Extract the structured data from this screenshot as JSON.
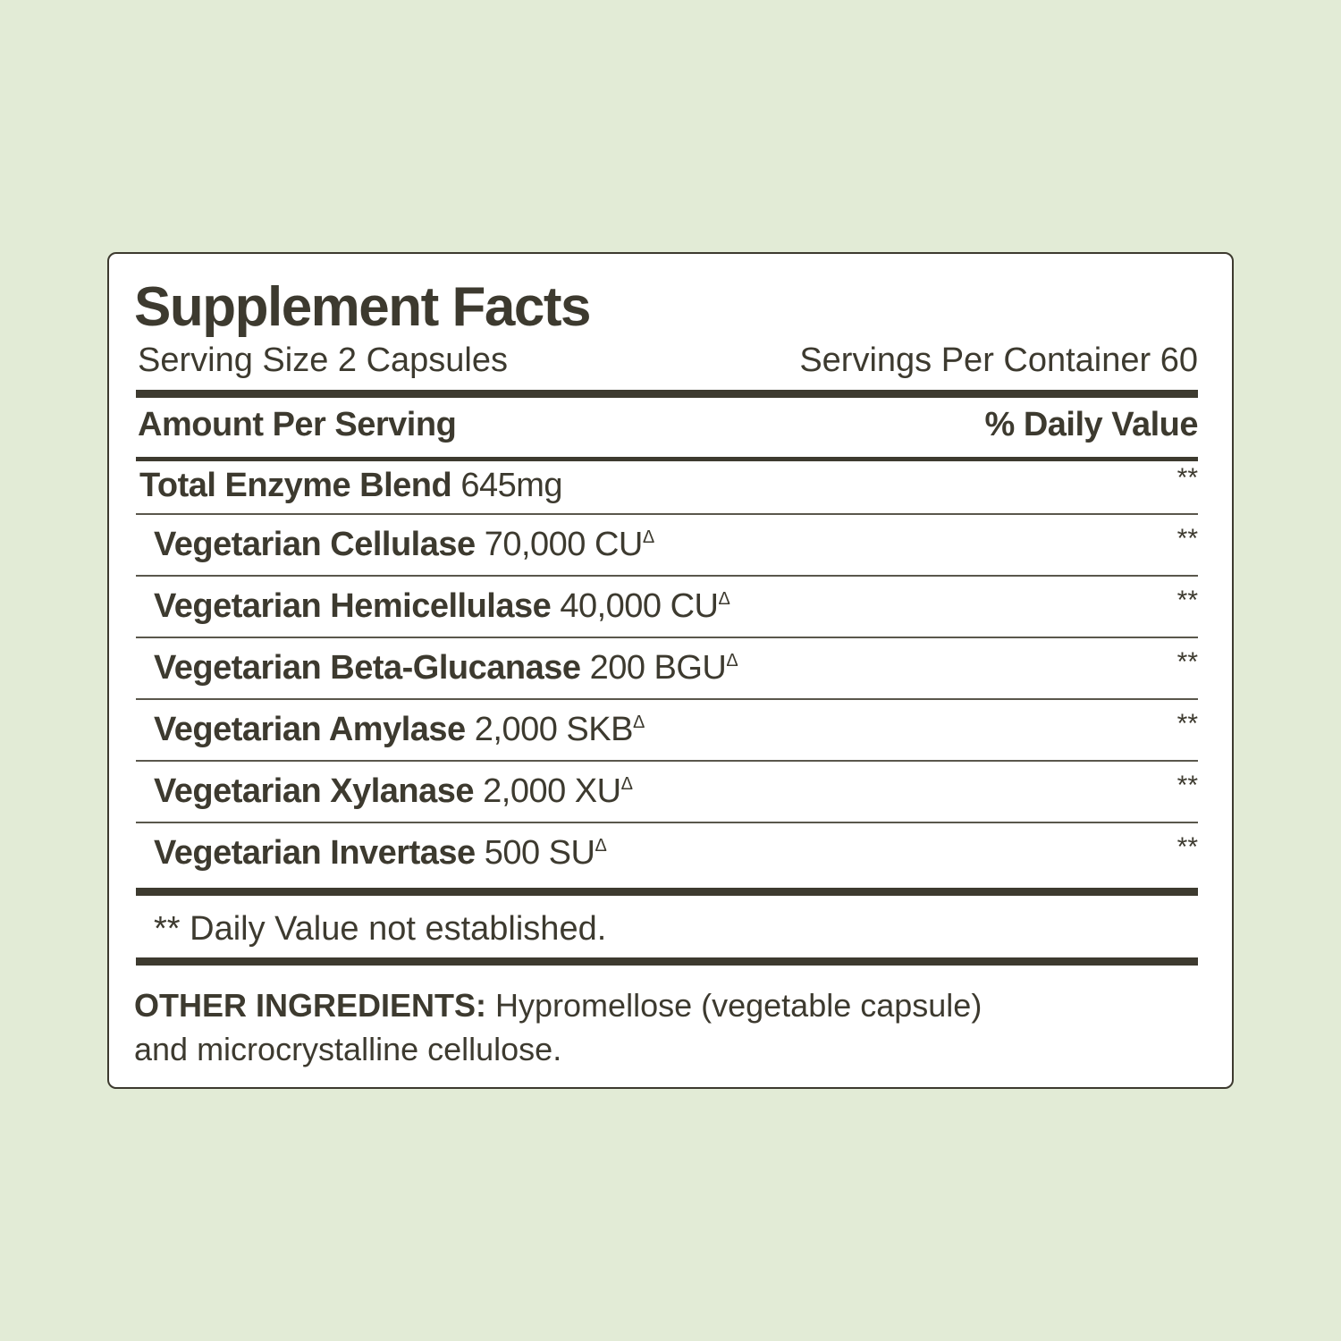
{
  "colors": {
    "background": "#e2ebd6",
    "panel": "#ffffff",
    "text": "#3d3a2f"
  },
  "label": {
    "title": "Supplement Facts",
    "serving_size": "Serving Size 2 Capsules",
    "servings_per_container": "Servings Per Container 60",
    "amount_header": "Amount Per Serving",
    "dv_header": "% Daily Value",
    "total": {
      "name": "Total Enzyme Blend",
      "amount": "645mg",
      "dv": "**"
    },
    "items": [
      {
        "name": "Vegetarian Cellulase",
        "amount": "70,000 CU",
        "mark": "Δ",
        "dv": "**"
      },
      {
        "name": "Vegetarian Hemicellulase",
        "amount": "40,000 CU",
        "mark": "Δ",
        "dv": "**"
      },
      {
        "name": "Vegetarian Beta-Glucanase",
        "amount": "200 BGU",
        "mark": "Δ",
        "dv": "**"
      },
      {
        "name": "Vegetarian Amylase",
        "amount": "2,000 SKB",
        "mark": "Δ",
        "dv": "**"
      },
      {
        "name": "Vegetarian Xylanase",
        "amount": "2,000 XU",
        "mark": "Δ",
        "dv": "**"
      },
      {
        "name": "Vegetarian Invertase",
        "amount": "500 SU",
        "mark": "Δ",
        "dv": "**"
      }
    ],
    "footnote": "** Daily Value not established.",
    "other_label": "OTHER INGREDIENTS:",
    "other_text": "Hypromellose (vegetable capsule)",
    "other_text2": "and microcrystalline cellulose."
  }
}
